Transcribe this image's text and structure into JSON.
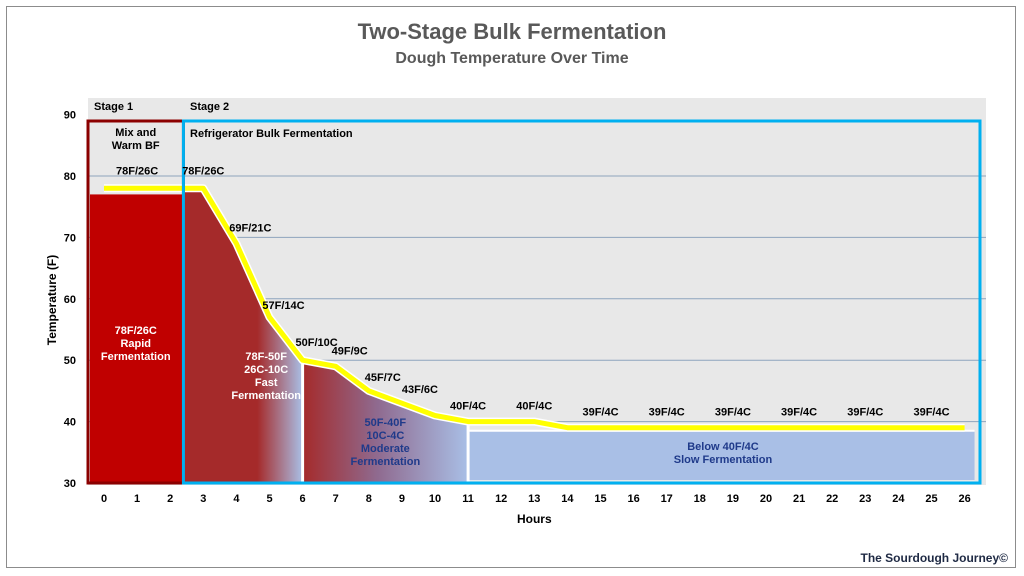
{
  "title": "Two-Stage Bulk Fermentation",
  "subtitle": "Dough Temperature Over Time",
  "credit": "The Sourdough Journey©",
  "colors": {
    "plot_bg": "#e8e8e8",
    "stage1": "#c00000",
    "stage2_fast": "#a52a2a",
    "cool": "#a9bfe6",
    "curve": "#ffff00",
    "stage1_border": "#8b0000",
    "stage2_border": "#00b0f0",
    "grid": "#8ea4bd"
  },
  "chart_data": {
    "type": "area",
    "xlabel": "Hours",
    "ylabel": "Temperature (F)",
    "ylim": [
      30,
      90
    ],
    "y_ticks": [
      30,
      40,
      50,
      60,
      70,
      80,
      90
    ],
    "x_ticks": [
      "0",
      "1",
      "2",
      "3",
      "4",
      "5",
      "6",
      "7",
      "8",
      "9",
      "10",
      "11",
      "12",
      "13",
      "14",
      "15",
      "16",
      "17",
      "18",
      "19",
      "20",
      "21",
      "22",
      "23",
      "24",
      "25",
      "26"
    ],
    "grid": true,
    "x": [
      0,
      2.5,
      3,
      4,
      5,
      6,
      7,
      8,
      9,
      10,
      11,
      12,
      13,
      14,
      15,
      16,
      17,
      18,
      19,
      20,
      21,
      22,
      23,
      24,
      25,
      26
    ],
    "y": [
      78,
      78,
      78,
      69,
      57,
      50,
      49,
      45,
      43,
      41,
      40,
      40,
      40,
      39,
      39,
      39,
      39,
      39,
      39,
      39,
      39,
      39,
      39,
      39,
      39,
      39
    ],
    "stages": [
      {
        "label": "Stage 1",
        "box_title": "Mix and\nWarm BF",
        "x_range": [
          0,
          2.4
        ]
      },
      {
        "label": "Stage 2",
        "box_title": "Refrigerator Bulk Fermentation",
        "x_range": [
          2.4,
          26.4
        ]
      }
    ],
    "zones": [
      {
        "text": "78F/26C\nRapid\nFermentation",
        "x_range": [
          0,
          2.4
        ],
        "top": 77
      },
      {
        "text": "78F-50F\n26C-10C\nFast\nFermentation",
        "x_range": [
          2.4,
          6
        ]
      },
      {
        "text": "50F-40F\n10C-4C\nModerate\nFermentation",
        "x_range": [
          6,
          11
        ]
      },
      {
        "text": "Below 40F/4C\nSlow Fermentation",
        "x_range": [
          11,
          26.3
        ],
        "top": 38.5
      }
    ],
    "annotations": [
      {
        "text": "78F/26C",
        "x": 1,
        "y": 78
      },
      {
        "text": "78F/26C",
        "x": 3,
        "y": 78
      },
      {
        "text": "69F/21C",
        "x": 4,
        "y": 69
      },
      {
        "text": "57F/14C",
        "x": 5,
        "y": 57
      },
      {
        "text": "50F/10C",
        "x": 6,
        "y": 50
      },
      {
        "text": "49F/9C",
        "x": 7,
        "y": 49
      },
      {
        "text": "45F/7C",
        "x": 8,
        "y": 45
      },
      {
        "text": "43F/6C",
        "x": 9,
        "y": 43
      },
      {
        "text": "40F/4C",
        "x": 11,
        "y": 40
      },
      {
        "text": "40F/4C",
        "x": 13,
        "y": 40
      },
      {
        "text": "39F/4C",
        "x": 15,
        "y": 39
      },
      {
        "text": "39F/4C",
        "x": 17,
        "y": 39
      },
      {
        "text": "39F/4C",
        "x": 19,
        "y": 39
      },
      {
        "text": "39F/4C",
        "x": 21,
        "y": 39
      },
      {
        "text": "39F/4C",
        "x": 23,
        "y": 39
      },
      {
        "text": "39F/4C",
        "x": 25,
        "y": 39
      }
    ]
  }
}
